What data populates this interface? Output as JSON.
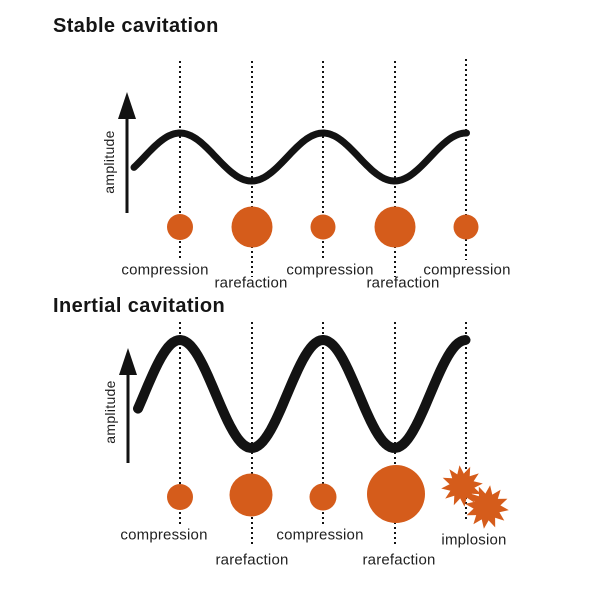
{
  "colors": {
    "bubble": "#d55c1b",
    "wave": "#131313",
    "text": "#1f1f1f"
  },
  "stable": {
    "title": "Stable cavitation",
    "amplitude_label": "amplitude",
    "phase_labels": [
      "compression",
      "rarefaction",
      "compression",
      "rarefaction",
      "compression"
    ]
  },
  "inertial": {
    "title": "Inertial cavitation",
    "amplitude_label": "amplitude",
    "phase_labels": [
      "compression",
      "rarefaction",
      "compression",
      "rarefaction",
      "implosion"
    ]
  }
}
